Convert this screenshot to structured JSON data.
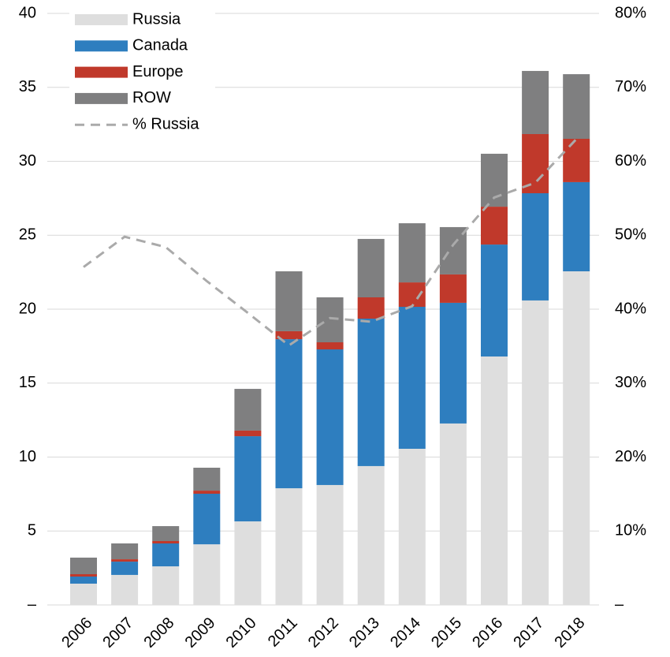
{
  "chart_data": {
    "type": "bar",
    "categories": [
      "2006",
      "2007",
      "2008",
      "2009",
      "2010",
      "2011",
      "2012",
      "2013",
      "2014",
      "2015",
      "2016",
      "2017",
      "2018"
    ],
    "series": [
      {
        "name": "Russia",
        "color": "#dedede",
        "values": [
          1.44,
          2.03,
          2.61,
          4.1,
          5.65,
          7.89,
          8.11,
          9.39,
          10.56,
          12.27,
          16.8,
          20.59,
          22.56
        ]
      },
      {
        "name": "Canada",
        "color": "#2e7ebf",
        "values": [
          0.48,
          0.9,
          1.55,
          3.42,
          5.76,
          10.08,
          9.17,
          9.97,
          9.6,
          8.16,
          7.57,
          7.25,
          6.03
        ]
      },
      {
        "name": "Europe",
        "color": "#c0392b",
        "values": [
          0.16,
          0.16,
          0.16,
          0.21,
          0.38,
          0.54,
          0.48,
          1.44,
          1.65,
          1.92,
          2.56,
          4.0,
          2.93
        ]
      },
      {
        "name": "ROW",
        "color": "#7f7f80",
        "values": [
          1.12,
          1.07,
          1.01,
          1.55,
          2.82,
          4.05,
          3.04,
          3.95,
          4.0,
          3.2,
          3.58,
          4.27,
          4.37
        ]
      },
      {
        "name": "% Russia",
        "color": "#aaaaaa",
        "type": "line",
        "axis": "y2",
        "dashed": true,
        "values": [
          45.7,
          49.8,
          48.4,
          43.8,
          39.5,
          35.1,
          38.8,
          38.3,
          40.4,
          48.7,
          55.1,
          57.1,
          63.0
        ]
      }
    ],
    "ylim": [
      0,
      40
    ],
    "yticks": [
      {
        "value": 0,
        "label": "–"
      },
      5,
      10,
      15,
      20,
      25,
      30,
      35,
      40
    ],
    "y2lim": [
      0,
      80
    ],
    "y2ticks": [
      {
        "value": 0,
        "label": "–"
      },
      {
        "value": 10,
        "label": "10%"
      },
      {
        "value": 20,
        "label": "20%"
      },
      {
        "value": 30,
        "label": "30%"
      },
      {
        "value": 40,
        "label": "40%"
      },
      {
        "value": 50,
        "label": "50%"
      },
      {
        "value": 60,
        "label": "60%"
      },
      {
        "value": 70,
        "label": "70%"
      },
      {
        "value": 80,
        "label": "80%"
      }
    ],
    "grid": true,
    "legend": "top-left",
    "stacked": true
  }
}
